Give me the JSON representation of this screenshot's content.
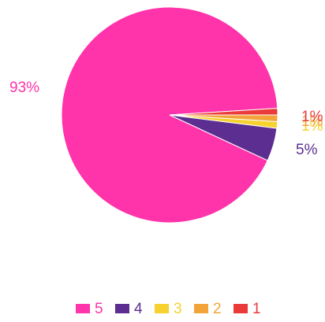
{
  "chart_data": {
    "type": "pie",
    "slices": [
      {
        "category": "5",
        "value": 93,
        "label": "93%",
        "color": "#ff33aa"
      },
      {
        "category": "4",
        "value": 5,
        "label": "5%",
        "color": "#5c2e91"
      },
      {
        "category": "3",
        "value": 1,
        "label": "1%",
        "color": "#f7d12e"
      },
      {
        "category": "2",
        "value": 1,
        "label": "1%",
        "color": "#f2a43a"
      },
      {
        "category": "1",
        "value": 1,
        "label": "1%",
        "color": "#ea3a3a"
      }
    ],
    "legend": {
      "placement": "bottom",
      "entries": [
        "5",
        "4",
        "3",
        "2",
        "1"
      ]
    }
  }
}
